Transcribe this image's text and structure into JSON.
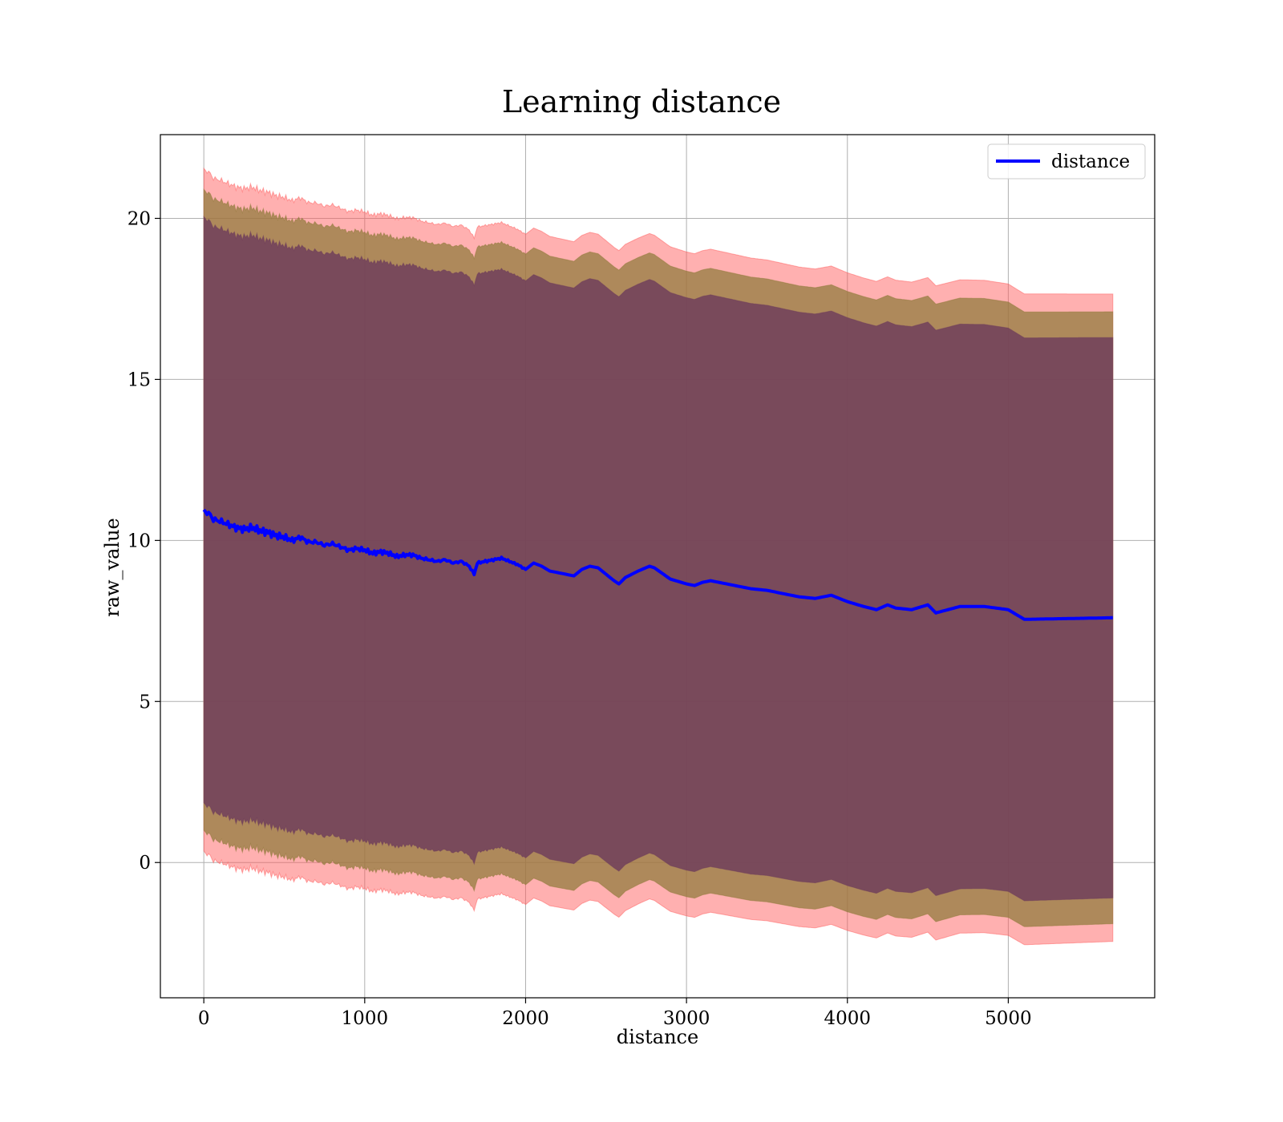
{
  "chart_data": {
    "type": "line",
    "title": "Learning distance",
    "xlabel": "distance",
    "ylabel": "raw_value",
    "xlim": [
      -270,
      5910
    ],
    "ylim": [
      -4.2,
      22.6
    ],
    "x_ticks": [
      0,
      1000,
      2000,
      3000,
      4000,
      5000
    ],
    "y_ticks": [
      0,
      5,
      10,
      15,
      20
    ],
    "grid": true,
    "legend_position": "top-right",
    "colors": {
      "line": "#0000ff",
      "band_outer": "#ff5a5a",
      "band_middle": "#8f7a3a",
      "band_inner": "#6e3c5c",
      "grid": "#b0b0b0"
    },
    "series": [
      {
        "name": "distance",
        "x": [
          0,
          30,
          60,
          100,
          150,
          200,
          250,
          300,
          350,
          400,
          450,
          500,
          550,
          600,
          650,
          700,
          750,
          800,
          850,
          900,
          950,
          1000,
          1050,
          1100,
          1150,
          1200,
          1250,
          1300,
          1350,
          1400,
          1450,
          1500,
          1550,
          1600,
          1650,
          1680,
          1700,
          1750,
          1800,
          1850,
          1900,
          1950,
          2000,
          2050,
          2100,
          2150,
          2200,
          2250,
          2300,
          2350,
          2400,
          2450,
          2500,
          2550,
          2580,
          2620,
          2700,
          2770,
          2800,
          2900,
          3000,
          3050,
          3100,
          3150,
          3200,
          3300,
          3400,
          3500,
          3600,
          3700,
          3800,
          3850,
          3900,
          4000,
          4100,
          4180,
          4250,
          4300,
          4400,
          4500,
          4550,
          4700,
          4850,
          5000,
          5100,
          5650
        ],
        "y": [
          10.9,
          10.85,
          10.65,
          10.6,
          10.5,
          10.4,
          10.35,
          10.4,
          10.3,
          10.25,
          10.15,
          10.1,
          10.0,
          10.1,
          9.95,
          9.95,
          9.85,
          9.9,
          9.8,
          9.7,
          9.75,
          9.7,
          9.6,
          9.65,
          9.6,
          9.5,
          9.55,
          9.55,
          9.45,
          9.4,
          9.35,
          9.4,
          9.3,
          9.35,
          9.2,
          8.95,
          9.3,
          9.35,
          9.4,
          9.45,
          9.35,
          9.25,
          9.1,
          9.3,
          9.2,
          9.05,
          9.0,
          8.95,
          8.9,
          9.1,
          9.2,
          9.15,
          8.95,
          8.75,
          8.65,
          8.85,
          9.05,
          9.2,
          9.15,
          8.8,
          8.65,
          8.6,
          8.7,
          8.75,
          8.7,
          8.6,
          8.5,
          8.45,
          8.35,
          8.25,
          8.2,
          8.25,
          8.3,
          8.1,
          7.95,
          7.85,
          8.0,
          7.9,
          7.85,
          8.0,
          7.75,
          7.95,
          7.95,
          7.85,
          7.55,
          7.6
        ]
      }
    ],
    "bands": [
      {
        "half_width_start": 10.6,
        "half_width_end": 10.05
      },
      {
        "half_width_start": 9.95,
        "half_width_end": 9.5
      },
      {
        "half_width_start": 9.1,
        "half_width_end": 8.7
      }
    ]
  }
}
